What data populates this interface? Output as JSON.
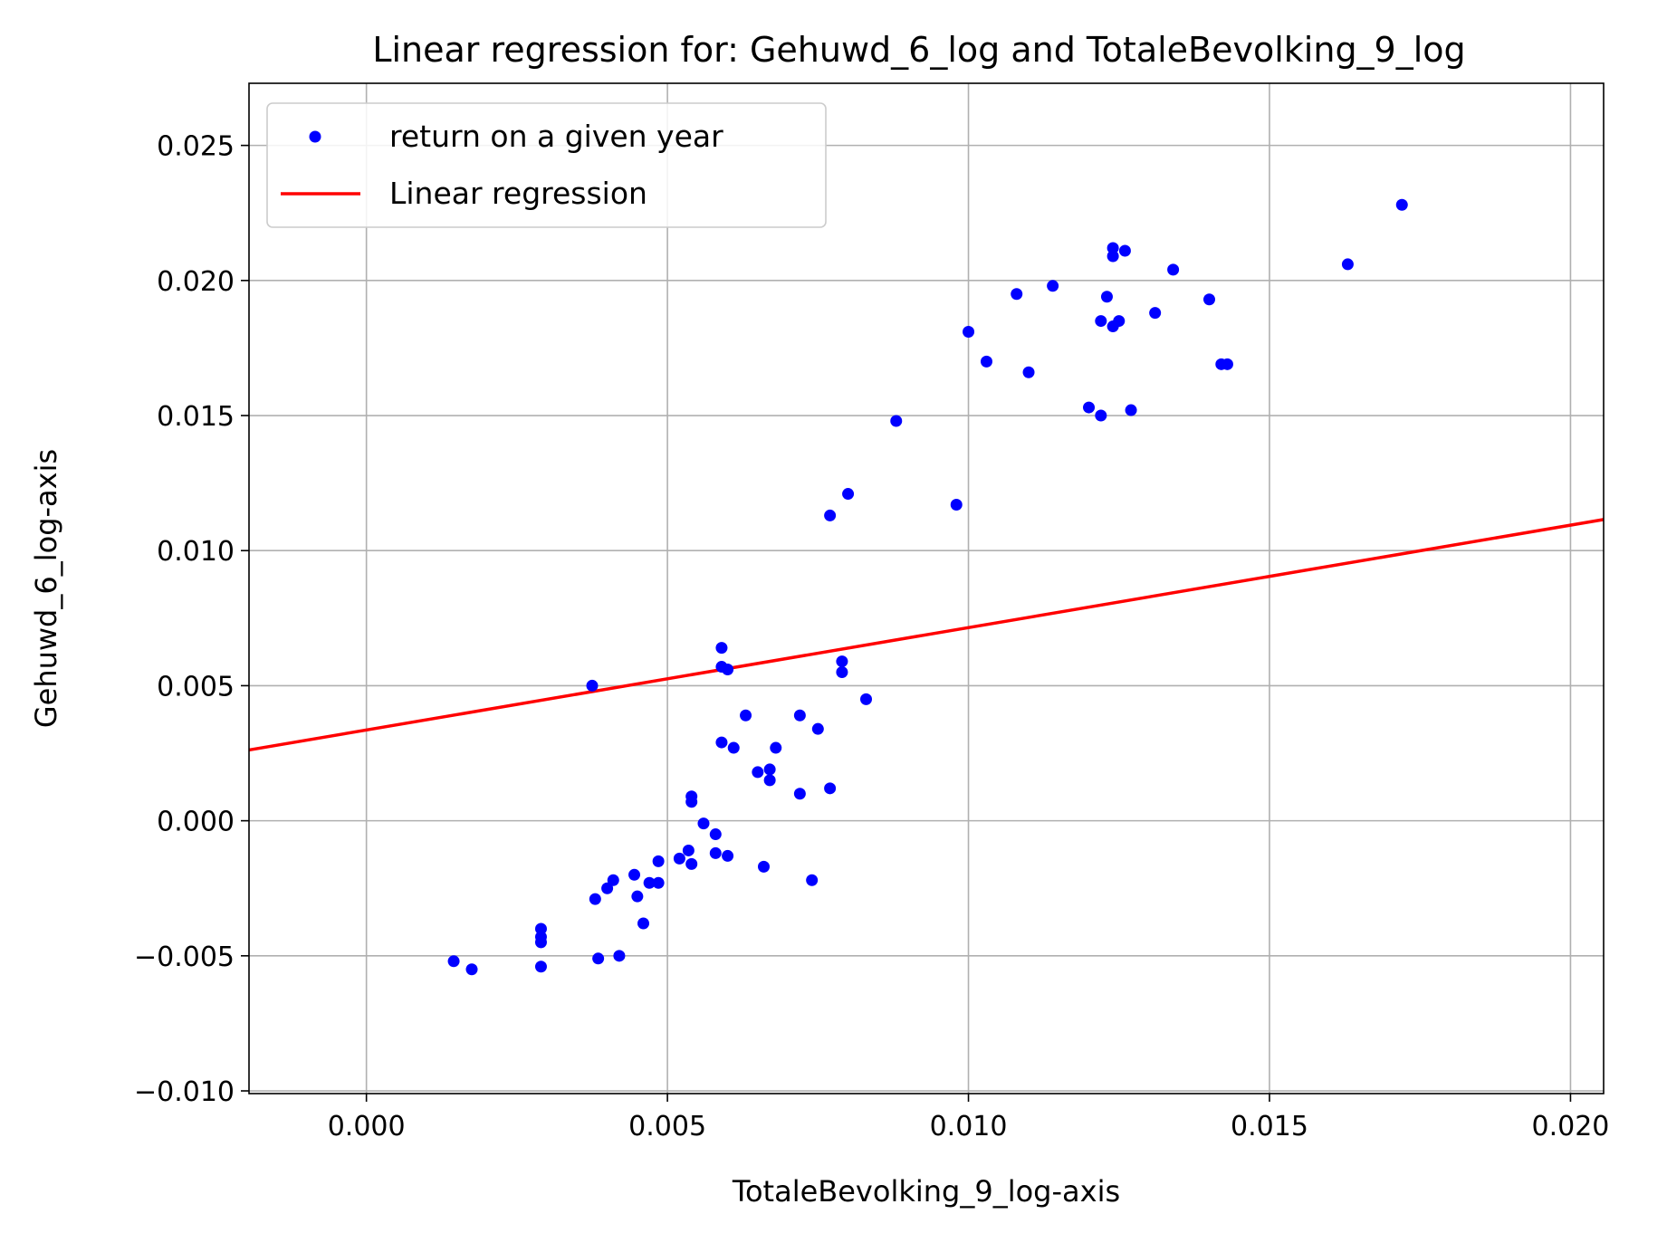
{
  "chart_data": {
    "type": "scatter",
    "title": "Linear regression for: Gehuwd_6_log and TotaleBevolking_9_log",
    "xlabel": "TotaleBevolking_9_log-axis",
    "ylabel": "Gehuwd_6_log-axis",
    "xlim": [
      -0.00195,
      0.02055
    ],
    "ylim": [
      -0.0101,
      0.0273
    ],
    "xticks": [
      0.0,
      0.005,
      0.01,
      0.015,
      0.02
    ],
    "xtick_labels": [
      "0.000",
      "0.005",
      "0.010",
      "0.015",
      "0.020"
    ],
    "yticks": [
      -0.01,
      -0.005,
      0.0,
      0.005,
      0.01,
      0.015,
      0.02,
      0.025
    ],
    "ytick_labels": [
      "−0.010",
      "−0.005",
      "0.000",
      "0.005",
      "0.010",
      "0.015",
      "0.020",
      "0.025"
    ],
    "grid": true,
    "legend": {
      "placement": "upper-left",
      "entries": [
        {
          "label": "return on a given year",
          "marker": "dot",
          "color": "#0000ff"
        },
        {
          "label": "Linear regression",
          "marker": "line",
          "color": "#ff0000"
        }
      ]
    },
    "series": [
      {
        "name": "return on a given year",
        "kind": "scatter",
        "color": "#0000ff",
        "points": [
          [
            0.00145,
            -0.0052
          ],
          [
            0.00175,
            -0.0055
          ],
          [
            0.0029,
            -0.0043
          ],
          [
            0.0029,
            -0.0045
          ],
          [
            0.0029,
            -0.004
          ],
          [
            0.0029,
            -0.0054
          ],
          [
            0.00375,
            0.005
          ],
          [
            0.0038,
            -0.0029
          ],
          [
            0.00385,
            -0.0051
          ],
          [
            0.004,
            -0.0025
          ],
          [
            0.0041,
            -0.0022
          ],
          [
            0.0042,
            -0.005
          ],
          [
            0.00445,
            -0.002
          ],
          [
            0.0045,
            -0.0028
          ],
          [
            0.0046,
            -0.0038
          ],
          [
            0.0047,
            -0.0023
          ],
          [
            0.00485,
            -0.0015
          ],
          [
            0.00485,
            -0.0023
          ],
          [
            0.0052,
            -0.0014
          ],
          [
            0.0054,
            0.0009
          ],
          [
            0.00535,
            -0.0011
          ],
          [
            0.0054,
            -0.0016
          ],
          [
            0.0054,
            0.0007
          ],
          [
            0.0056,
            -0.0001
          ],
          [
            0.0058,
            -0.0012
          ],
          [
            0.0058,
            -0.0005
          ],
          [
            0.0059,
            0.0029
          ],
          [
            0.0059,
            0.0057
          ],
          [
            0.0059,
            0.0064
          ],
          [
            0.006,
            0.0056
          ],
          [
            0.006,
            -0.0013
          ],
          [
            0.0061,
            0.0027
          ],
          [
            0.0063,
            0.0039
          ],
          [
            0.0065,
            0.0018
          ],
          [
            0.0066,
            -0.0017
          ],
          [
            0.0067,
            0.0015
          ],
          [
            0.0067,
            0.0019
          ],
          [
            0.0068,
            0.0027
          ],
          [
            0.0072,
            0.0039
          ],
          [
            0.0072,
            0.001
          ],
          [
            0.0074,
            -0.0022
          ],
          [
            0.0075,
            0.0034
          ],
          [
            0.0077,
            0.0012
          ],
          [
            0.0077,
            0.0113
          ],
          [
            0.0079,
            0.0059
          ],
          [
            0.0079,
            0.0055
          ],
          [
            0.008,
            0.0121
          ],
          [
            0.0083,
            0.0045
          ],
          [
            0.0088,
            0.0148
          ],
          [
            0.0098,
            0.0117
          ],
          [
            0.01,
            0.0181
          ],
          [
            0.0103,
            0.017
          ],
          [
            0.0108,
            0.0195
          ],
          [
            0.011,
            0.0166
          ],
          [
            0.0114,
            0.0198
          ],
          [
            0.012,
            0.0153
          ],
          [
            0.0122,
            0.0185
          ],
          [
            0.0122,
            0.015
          ],
          [
            0.0123,
            0.0194
          ],
          [
            0.0124,
            0.0212
          ],
          [
            0.0124,
            0.0183
          ],
          [
            0.0124,
            0.0209
          ],
          [
            0.0125,
            0.0185
          ],
          [
            0.0126,
            0.0211
          ],
          [
            0.0127,
            0.0152
          ],
          [
            0.0131,
            0.0188
          ],
          [
            0.0134,
            0.0204
          ],
          [
            0.014,
            0.0193
          ],
          [
            0.0142,
            0.0169
          ],
          [
            0.0143,
            0.0169
          ],
          [
            0.0163,
            0.0206
          ],
          [
            0.0172,
            0.0228
          ]
        ]
      },
      {
        "name": "Linear regression",
        "kind": "line",
        "color": "#ff0000",
        "points": [
          [
            -0.00195,
            0.00262
          ],
          [
            0.02055,
            0.01115
          ]
        ]
      }
    ]
  }
}
